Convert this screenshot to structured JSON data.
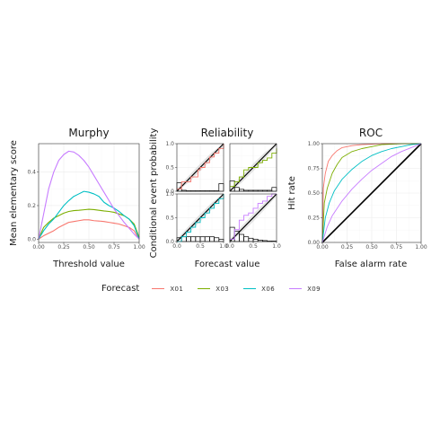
{
  "colors": {
    "X01": "#f8766d",
    "X03": "#7cae00",
    "X06": "#00bfc4",
    "X09": "#c77cff",
    "diag": "#000000"
  },
  "legend": {
    "title": "Forecast",
    "items": [
      {
        "name": "X01",
        "color": "#f8766d"
      },
      {
        "name": "X03",
        "color": "#7cae00"
      },
      {
        "name": "X06",
        "color": "#00bfc4"
      },
      {
        "name": "X09",
        "color": "#c77cff"
      }
    ]
  },
  "chart_data": [
    {
      "type": "line",
      "title": "Murphy",
      "xlabel": "Threshold value",
      "ylabel": "Mean elementary score",
      "xlim": [
        0,
        1
      ],
      "ylim": [
        -0.02,
        0.57
      ],
      "xticks": [
        "0.00",
        "0.25",
        "0.50",
        "0.75",
        "1.00"
      ],
      "xtick_values": [
        0,
        0.25,
        0.5,
        0.75,
        1
      ],
      "yticks": [
        "0.0",
        "0.2",
        "0.4"
      ],
      "ytick_values": [
        0,
        0.2,
        0.4
      ],
      "series": [
        {
          "name": "X01",
          "x": [
            0,
            0.05,
            0.1,
            0.15,
            0.2,
            0.25,
            0.3,
            0.35,
            0.4,
            0.45,
            0.5,
            0.55,
            0.6,
            0.65,
            0.7,
            0.75,
            0.8,
            0.85,
            0.9,
            0.95,
            1
          ],
          "y": [
            0,
            0.02,
            0.035,
            0.05,
            0.07,
            0.085,
            0.1,
            0.105,
            0.11,
            0.115,
            0.115,
            0.11,
            0.108,
            0.105,
            0.1,
            0.095,
            0.09,
            0.08,
            0.07,
            0.05,
            0
          ]
        },
        {
          "name": "X03",
          "x": [
            0,
            0.05,
            0.1,
            0.15,
            0.2,
            0.25,
            0.3,
            0.35,
            0.4,
            0.45,
            0.5,
            0.55,
            0.6,
            0.65,
            0.7,
            0.75,
            0.8,
            0.85,
            0.9,
            0.95,
            1
          ],
          "y": [
            0,
            0.07,
            0.1,
            0.125,
            0.14,
            0.155,
            0.165,
            0.17,
            0.172,
            0.175,
            0.178,
            0.176,
            0.172,
            0.168,
            0.165,
            0.16,
            0.15,
            0.14,
            0.12,
            0.09,
            0.01
          ]
        },
        {
          "name": "X06",
          "x": [
            0,
            0.05,
            0.1,
            0.15,
            0.2,
            0.25,
            0.3,
            0.35,
            0.4,
            0.45,
            0.5,
            0.55,
            0.6,
            0.65,
            0.7,
            0.75,
            0.8,
            0.85,
            0.9,
            0.95,
            1
          ],
          "y": [
            0,
            0.05,
            0.09,
            0.12,
            0.16,
            0.2,
            0.23,
            0.255,
            0.27,
            0.285,
            0.28,
            0.27,
            0.255,
            0.22,
            0.2,
            0.185,
            0.165,
            0.14,
            0.12,
            0.08,
            0
          ]
        },
        {
          "name": "X09",
          "x": [
            0,
            0.05,
            0.1,
            0.15,
            0.2,
            0.25,
            0.3,
            0.35,
            0.4,
            0.45,
            0.5,
            0.55,
            0.6,
            0.65,
            0.7,
            0.75,
            0.8,
            0.85,
            0.9,
            0.95,
            1
          ],
          "y": [
            0,
            0.15,
            0.3,
            0.4,
            0.47,
            0.505,
            0.525,
            0.52,
            0.5,
            0.47,
            0.43,
            0.38,
            0.33,
            0.28,
            0.23,
            0.18,
            0.14,
            0.1,
            0.065,
            0.03,
            0
          ]
        }
      ]
    },
    {
      "type": "line",
      "title": "Reliability",
      "xlabel": "Forecast value",
      "ylabel": "Conditional event probability",
      "xlim": [
        0,
        1
      ],
      "ylim": [
        0,
        1
      ],
      "xticks": [
        "0.0",
        "0.5",
        "1.0"
      ],
      "xtick_values": [
        0,
        0.5,
        1
      ],
      "yticks": [
        "0.0",
        "0.5",
        "1.0"
      ],
      "ytick_values": [
        0,
        0.5,
        1
      ],
      "panels": [
        {
          "name": "X01",
          "x": [
            0,
            0.1,
            0.3,
            0.45,
            0.5,
            0.6,
            0.7,
            0.8,
            0.9,
            1
          ],
          "y": [
            0.05,
            0.2,
            0.3,
            0.45,
            0.5,
            0.6,
            0.72,
            0.8,
            0.9,
            1
          ],
          "hist_bins": [
            0,
            0.1,
            0.2,
            0.3,
            0.4,
            0.5,
            0.6,
            0.7,
            0.8,
            0.9,
            1
          ],
          "hist": [
            0.18,
            0.02,
            0.01,
            0.01,
            0.01,
            0.01,
            0.01,
            0.01,
            0.01,
            0.16
          ]
        },
        {
          "name": "X03",
          "x": [
            0,
            0.1,
            0.2,
            0.3,
            0.4,
            0.5,
            0.6,
            0.7,
            0.8,
            0.9,
            1
          ],
          "y": [
            0.1,
            0.2,
            0.3,
            0.45,
            0.5,
            0.5,
            0.6,
            0.65,
            0.7,
            0.8,
            0.9
          ],
          "hist_bins": [
            0,
            0.1,
            0.2,
            0.3,
            0.4,
            0.5,
            0.6,
            0.7,
            0.8,
            0.9,
            1
          ],
          "hist": [
            0.22,
            0.08,
            0.04,
            0.02,
            0.02,
            0.02,
            0.02,
            0.02,
            0.02,
            0.08
          ]
        },
        {
          "name": "X06",
          "x": [
            0,
            0.1,
            0.2,
            0.3,
            0.4,
            0.5,
            0.6,
            0.7,
            0.8,
            0.9,
            1
          ],
          "y": [
            0,
            0.1,
            0.2,
            0.3,
            0.4,
            0.5,
            0.6,
            0.7,
            0.8,
            0.9,
            1
          ],
          "hist_bins": [
            0,
            0.1,
            0.2,
            0.3,
            0.4,
            0.5,
            0.6,
            0.7,
            0.8,
            0.9,
            1
          ],
          "hist": [
            0.08,
            0.1,
            0.1,
            0.1,
            0.1,
            0.1,
            0.1,
            0.1,
            0.08,
            0.05
          ]
        },
        {
          "name": "X09",
          "x": [
            0,
            0.1,
            0.2,
            0.3,
            0.4,
            0.5,
            0.6,
            0.7,
            0.8,
            0.9,
            1
          ],
          "y": [
            0.05,
            0.25,
            0.45,
            0.55,
            0.6,
            0.7,
            0.8,
            0.85,
            0.95,
            1,
            1
          ],
          "hist_bins": [
            0,
            0.1,
            0.2,
            0.3,
            0.4,
            0.5,
            0.6,
            0.7,
            0.8,
            0.9,
            1
          ],
          "hist": [
            0.3,
            0.22,
            0.15,
            0.1,
            0.07,
            0.05,
            0.03,
            0.02,
            0.01,
            0.01
          ]
        }
      ]
    },
    {
      "type": "line",
      "title": "ROC",
      "xlabel": "False alarm rate",
      "ylabel": "Hit rate",
      "xlim": [
        0,
        1
      ],
      "ylim": [
        0,
        1
      ],
      "xticks": [
        "0.00",
        "0.25",
        "0.50",
        "0.75",
        "1.00"
      ],
      "xtick_values": [
        0,
        0.25,
        0.5,
        0.75,
        1
      ],
      "yticks": [
        "0.00",
        "0.25",
        "0.50",
        "0.75",
        "1.00"
      ],
      "ytick_values": [
        0,
        0.25,
        0.5,
        0.75,
        1
      ],
      "series": [
        {
          "name": "X01",
          "x": [
            0,
            0.01,
            0.03,
            0.06,
            0.1,
            0.15,
            0.2,
            0.3,
            0.4,
            0.6,
            0.8,
            1
          ],
          "y": [
            0,
            0.55,
            0.7,
            0.82,
            0.88,
            0.93,
            0.96,
            0.98,
            0.99,
            1,
            1,
            1
          ]
        },
        {
          "name": "X03",
          "x": [
            0,
            0.02,
            0.05,
            0.1,
            0.15,
            0.2,
            0.3,
            0.4,
            0.5,
            0.6,
            0.8,
            1
          ],
          "y": [
            0,
            0.4,
            0.55,
            0.7,
            0.79,
            0.86,
            0.92,
            0.95,
            0.97,
            0.99,
            1,
            1
          ]
        },
        {
          "name": "X06",
          "x": [
            0,
            0.03,
            0.07,
            0.12,
            0.2,
            0.3,
            0.4,
            0.5,
            0.6,
            0.7,
            0.8,
            0.9,
            1
          ],
          "y": [
            0,
            0.25,
            0.4,
            0.52,
            0.64,
            0.74,
            0.82,
            0.88,
            0.92,
            0.95,
            0.97,
            0.99,
            1
          ]
        },
        {
          "name": "X09",
          "x": [
            0,
            0.05,
            0.1,
            0.2,
            0.3,
            0.4,
            0.5,
            0.6,
            0.7,
            0.8,
            0.9,
            1
          ],
          "y": [
            0,
            0.16,
            0.27,
            0.42,
            0.54,
            0.64,
            0.73,
            0.8,
            0.87,
            0.92,
            0.96,
            1
          ]
        }
      ]
    }
  ]
}
